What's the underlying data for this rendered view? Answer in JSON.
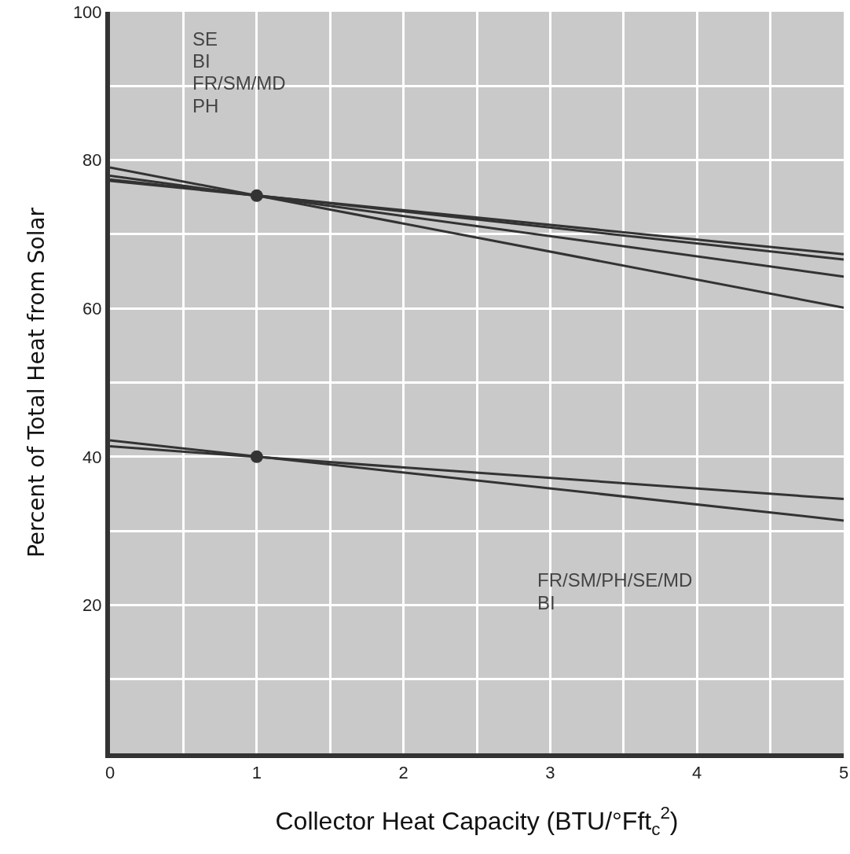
{
  "chart_data": {
    "type": "line",
    "xlabel": "Collector Heat Capacity (BTU/°Fft$_{c}$$^{2}$)",
    "ylabel": "Percent of Total Heat from Solar",
    "series": [
      {
        "color": "#333333",
        "x": [
          0,
          5
        ],
        "values": [
          77.2,
          67.3
        ]
      },
      {
        "color": "#333333",
        "x": [
          0,
          5
        ],
        "values": [
          77.4,
          66.6
        ]
      },
      {
        "color": "#333333",
        "x": [
          0,
          5
        ],
        "values": [
          77.9,
          64.3
        ]
      },
      {
        "color": "#333333",
        "x": [
          0,
          5
        ],
        "values": [
          79,
          60.1
        ]
      },
      {
        "color": "#333333",
        "x": [
          0,
          5
        ],
        "values": [
          41.4,
          34.3
        ]
      },
      {
        "color": "#333333",
        "x": [
          0,
          5
        ],
        "values": [
          42.2,
          31.4
        ]
      },
      {
        "type": "scatter",
        "color": "#333333",
        "marker": "circle",
        "x": [
          1,
          1
        ],
        "values": [
          75.2,
          40
        ]
      }
    ],
    "annotations": [
      "SE",
      "BI",
      "FR/SM/MD",
      "PH",
      "FR/SM/PH/SE/MD",
      "BI"
    ],
    "xlim": [
      0,
      5
    ],
    "ylim": [
      0,
      100
    ],
    "xticks": [
      0,
      {
        "value": 0.5,
        "label": null
      },
      1,
      {
        "value": 1.5,
        "label": null
      },
      2,
      {
        "value": 2.5,
        "label": null
      },
      3,
      {
        "value": 3.5,
        "label": null
      },
      4,
      {
        "value": 4.5,
        "label": null
      },
      5
    ],
    "yticks": [
      {
        "value": 10,
        "label": null
      },
      20,
      {
        "value": 30,
        "label": null
      },
      40,
      {
        "value": 50,
        "label": null
      },
      60,
      {
        "value": 70,
        "label": null
      },
      80,
      {
        "value": 90,
        "label": null
      },
      100
    ],
    "grid": true,
    "marker": "none",
    "line_style": "solid"
  }
}
